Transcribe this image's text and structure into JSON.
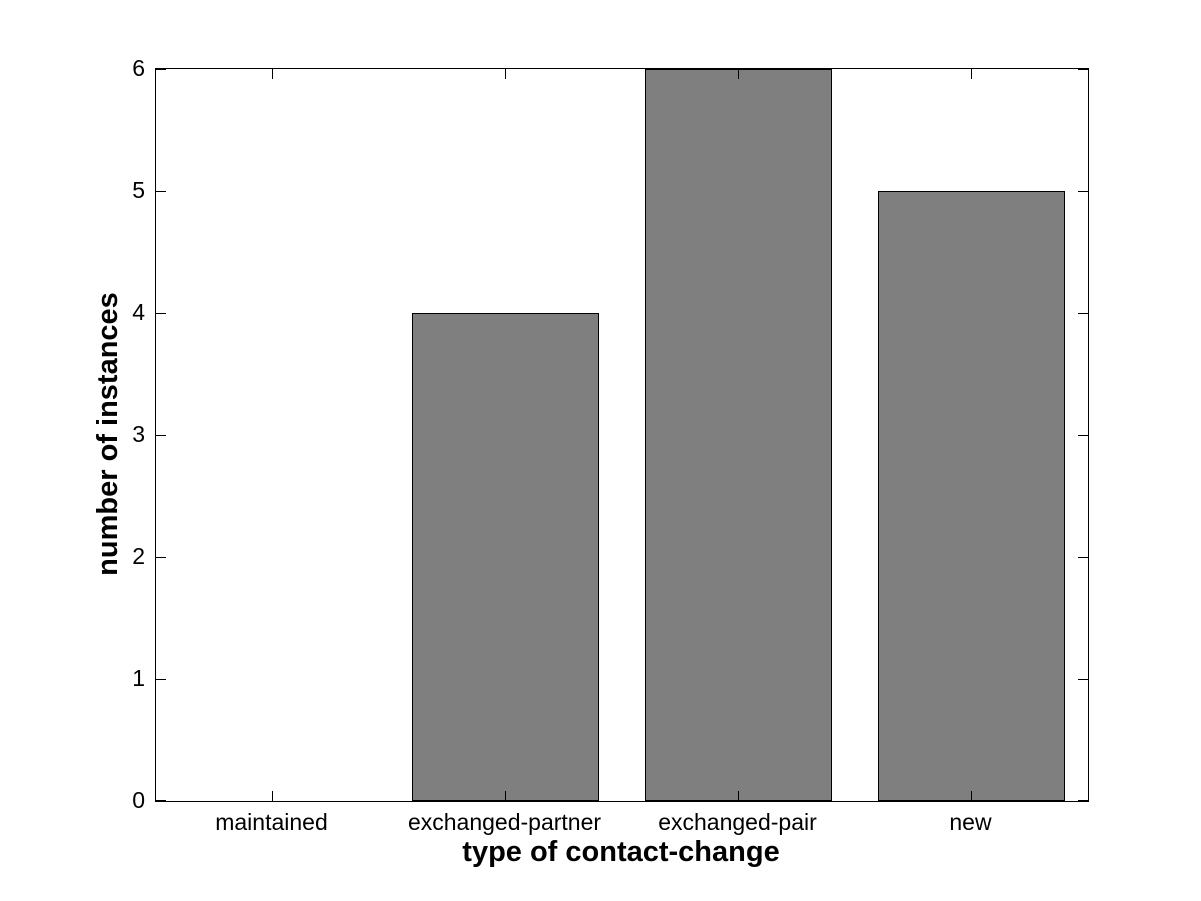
{
  "chart_data": {
    "type": "bar",
    "categories": [
      "maintained",
      "exchanged-partner",
      "exchanged-pair",
      "new"
    ],
    "values": [
      0,
      4,
      6,
      5
    ],
    "title": "",
    "xlabel": "type of contact-change",
    "ylabel": "number of instances",
    "ylim": [
      0,
      6
    ],
    "yticks": [
      0,
      1,
      2,
      3,
      4,
      5,
      6
    ],
    "ytick_labels": [
      "0",
      "1",
      "2",
      "3",
      "4",
      "5",
      "6"
    ],
    "bar_width_fraction": 0.8,
    "bar_color": "#7f7f7f",
    "bar_edge_color": "#000000",
    "axis_color": "#000000",
    "background_color": "#ffffff",
    "grid": false,
    "legend": null
  }
}
